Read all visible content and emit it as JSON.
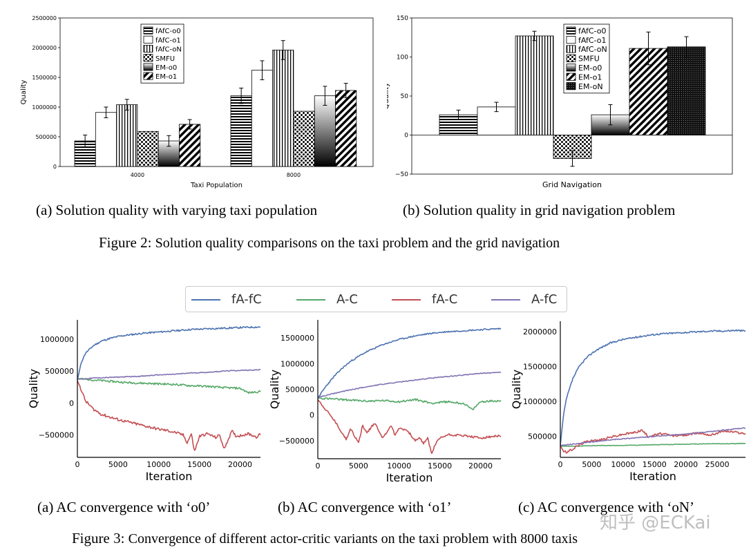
{
  "figure2": {
    "caption_prefix": "Figure 2:",
    "caption_text": "Solution quality comparisons on the taxi problem and the grid navigation",
    "subcaption_a": "(a) Solution quality with varying taxi population",
    "subcaption_b": "(b) Solution quality in grid navigation problem"
  },
  "figure3": {
    "caption_prefix": "Figure 3:",
    "caption_text": "Convergence of different actor-critic variants on the taxi problem with 8000 taxis",
    "subcaption_a": "(a) AC convergence with ‘o0’",
    "subcaption_b": "(b) AC convergence with ‘o1’",
    "subcaption_c": "(c) AC convergence with ‘oN’",
    "legend": [
      "fA-fC",
      "A-C",
      "fA-C",
      "A-fC"
    ]
  },
  "watermark": "知乎 @ECKai",
  "chart_data": [
    {
      "type": "bar",
      "id": "taxi",
      "title": "",
      "xlabel": "Taxi Population",
      "ylabel": "Quality",
      "categories": [
        "4000",
        "8000"
      ],
      "ylim": [
        0,
        2500000
      ],
      "yticks": [
        0,
        500000,
        1000000,
        1500000,
        2000000,
        2500000
      ],
      "ytick_labels": [
        "0",
        "500000",
        "1000000",
        "1500000",
        "2000000",
        "2500000"
      ],
      "series": [
        {
          "name": "fAfC-o0",
          "pattern": "hstripe",
          "values": [
            430000,
            1190000
          ],
          "errors": [
            100000,
            130000
          ]
        },
        {
          "name": "fAfC-o1",
          "pattern": "white",
          "values": [
            910000,
            1620000
          ],
          "errors": [
            90000,
            160000
          ]
        },
        {
          "name": "fAfC-oN",
          "pattern": "vstripe",
          "values": [
            1040000,
            1960000
          ],
          "errors": [
            90000,
            160000
          ]
        },
        {
          "name": "SMFU",
          "pattern": "dots",
          "values": [
            590000,
            930000
          ],
          "errors": [
            0,
            0
          ]
        },
        {
          "name": "EM-o0",
          "pattern": "gradient",
          "values": [
            430000,
            1190000
          ],
          "errors": [
            90000,
            160000
          ]
        },
        {
          "name": "EM-o1",
          "pattern": "diag",
          "values": [
            710000,
            1280000
          ],
          "errors": [
            80000,
            120000
          ]
        }
      ]
    },
    {
      "type": "bar",
      "id": "grid",
      "title": "",
      "xlabel": "Grid Navigation",
      "ylabel": "Quality",
      "categories": [
        ""
      ],
      "ylim": [
        -50,
        150
      ],
      "yticks": [
        -50,
        0,
        50,
        100,
        150
      ],
      "ytick_labels": [
        "−50",
        "0",
        "50",
        "100",
        "150"
      ],
      "series": [
        {
          "name": "fAfC-o0",
          "pattern": "hstripe",
          "values": [
            26
          ],
          "errors": [
            6
          ]
        },
        {
          "name": "fAfC-o1",
          "pattern": "white",
          "values": [
            36
          ],
          "errors": [
            6
          ]
        },
        {
          "name": "fAfC-oN",
          "pattern": "vstripe",
          "values": [
            127
          ],
          "errors": [
            6
          ]
        },
        {
          "name": "SMFU",
          "pattern": "dots",
          "values": [
            -30
          ],
          "errors": [
            10
          ]
        },
        {
          "name": "EM-o0",
          "pattern": "gradient",
          "values": [
            26
          ],
          "errors": [
            13
          ]
        },
        {
          "name": "EM-o1",
          "pattern": "diag",
          "values": [
            111
          ],
          "errors": [
            21
          ]
        },
        {
          "name": "EM-oN",
          "pattern": "cross",
          "values": [
            113
          ],
          "errors": [
            13
          ]
        }
      ]
    },
    {
      "type": "line",
      "id": "o0",
      "xlabel": "Iteration",
      "ylabel": "Quality",
      "xlim": [
        0,
        22500
      ],
      "ylim": [
        -850000,
        1300000
      ],
      "xticks": [
        0,
        5000,
        10000,
        15000,
        20000
      ],
      "xtick_labels": [
        "0",
        "5000",
        "10000",
        "15000",
        "20000"
      ],
      "yticks": [
        -500000,
        0,
        500000,
        1000000
      ],
      "ytick_labels": [
        "−500000",
        "0",
        "500000",
        "1000000"
      ],
      "series": [
        {
          "name": "fA-fC",
          "color": "#4c72b0",
          "x": [
            0,
            500,
            1000,
            2000,
            3000,
            4000,
            5000,
            6000,
            8000,
            10000,
            12000,
            14000,
            16000,
            18000,
            20000,
            22500
          ],
          "y": [
            360000,
            640000,
            780000,
            900000,
            970000,
            1010000,
            1040000,
            1060000,
            1090000,
            1110000,
            1130000,
            1150000,
            1160000,
            1170000,
            1180000,
            1190000
          ]
        },
        {
          "name": "A-C",
          "color": "#55a868",
          "x": [
            0,
            2000,
            4000,
            6000,
            8000,
            10000,
            12000,
            14000,
            16000,
            18000,
            20000,
            21000,
            22500
          ],
          "y": [
            380000,
            360000,
            340000,
            320000,
            310000,
            300000,
            290000,
            270000,
            260000,
            240000,
            230000,
            160000,
            180000
          ]
        },
        {
          "name": "fA-C",
          "color": "#c44e52",
          "x": [
            0,
            500,
            1000,
            2000,
            3000,
            4000,
            5000,
            6000,
            7000,
            8000,
            9000,
            10000,
            11000,
            12000,
            13000,
            13500,
            14000,
            14400,
            15000,
            16000,
            17000,
            17500,
            18000,
            19000,
            19500,
            20000,
            21000,
            22000,
            22500
          ],
          "y": [
            350000,
            200000,
            30000,
            -100000,
            -180000,
            -220000,
            -260000,
            -290000,
            -320000,
            -350000,
            -380000,
            -410000,
            -430000,
            -460000,
            -500000,
            -620000,
            -480000,
            -760000,
            -520000,
            -480000,
            -540000,
            -500000,
            -720000,
            -440000,
            -520000,
            -510000,
            -480000,
            -530000,
            -490000
          ]
        },
        {
          "name": "A-fC",
          "color": "#8172b2",
          "x": [
            0,
            2000,
            4000,
            6000,
            8000,
            10000,
            12000,
            14000,
            16000,
            18000,
            20000,
            22500
          ],
          "y": [
            370000,
            390000,
            400000,
            410000,
            420000,
            440000,
            450000,
            470000,
            480000,
            500000,
            510000,
            520000
          ]
        }
      ]
    },
    {
      "type": "line",
      "id": "o1",
      "xlabel": "Iteration",
      "ylabel": "Quality",
      "xlim": [
        0,
        22500
      ],
      "ylim": [
        -850000,
        1850000
      ],
      "xticks": [
        0,
        5000,
        10000,
        15000,
        20000
      ],
      "xtick_labels": [
        "0",
        "5000",
        "10000",
        "15000",
        "20000"
      ],
      "yticks": [
        -500000,
        0,
        500000,
        1000000,
        1500000
      ],
      "ytick_labels": [
        "−500000",
        "0",
        "500000",
        "1000000",
        "1500000"
      ],
      "series": [
        {
          "name": "fA-fC",
          "color": "#4c72b0",
          "x": [
            0,
            1000,
            2000,
            3000,
            4000,
            5000,
            6000,
            8000,
            10000,
            12000,
            14000,
            16000,
            18000,
            20000,
            22500
          ],
          "y": [
            330000,
            560000,
            750000,
            910000,
            1040000,
            1140000,
            1230000,
            1370000,
            1470000,
            1540000,
            1590000,
            1620000,
            1640000,
            1660000,
            1680000
          ]
        },
        {
          "name": "A-C",
          "color": "#55a868",
          "x": [
            0,
            2000,
            4000,
            6000,
            8000,
            10000,
            12000,
            14000,
            16000,
            18000,
            19000,
            20000,
            22500
          ],
          "y": [
            330000,
            310000,
            290000,
            270000,
            280000,
            260000,
            300000,
            230000,
            260000,
            220000,
            100000,
            260000,
            280000
          ]
        },
        {
          "name": "fA-C",
          "color": "#c44e52",
          "x": [
            0,
            1000,
            2000,
            3000,
            3500,
            4000,
            5000,
            5500,
            6000,
            7000,
            8000,
            9000,
            9500,
            10000,
            11000,
            12000,
            12500,
            13000,
            13500,
            14000,
            14500,
            15000,
            16000,
            18000,
            20000,
            22500
          ],
          "y": [
            300000,
            100000,
            -100000,
            -350000,
            -480000,
            -250000,
            -550000,
            -200000,
            -350000,
            -150000,
            -450000,
            -200000,
            -400000,
            -250000,
            -300000,
            -500000,
            -450000,
            -550000,
            -450000,
            -750000,
            -550000,
            -450000,
            -380000,
            -400000,
            -450000,
            -400000
          ]
        },
        {
          "name": "A-fC",
          "color": "#8172b2",
          "x": [
            0,
            2000,
            4000,
            6000,
            8000,
            10000,
            12000,
            14000,
            16000,
            18000,
            20000,
            22500
          ],
          "y": [
            340000,
            420000,
            490000,
            550000,
            600000,
            640000,
            680000,
            720000,
            750000,
            780000,
            810000,
            830000
          ]
        }
      ]
    },
    {
      "type": "line",
      "id": "oN",
      "xlabel": "Iteration",
      "ylabel": "Quality",
      "xlim": [
        0,
        29500
      ],
      "ylim": [
        200000,
        2150000
      ],
      "xticks": [
        0,
        5000,
        10000,
        15000,
        20000,
        25000
      ],
      "xtick_labels": [
        "0",
        "5000",
        "10000",
        "15000",
        "20000",
        "25000"
      ],
      "yticks": [
        500000,
        1000000,
        1500000,
        2000000
      ],
      "ytick_labels": [
        "500000",
        "1000000",
        "1500000",
        "2000000"
      ],
      "series": [
        {
          "name": "fA-fC",
          "color": "#4c72b0",
          "x": [
            0,
            500,
            1000,
            2000,
            3000,
            4000,
            5000,
            6000,
            8000,
            10000,
            12000,
            14000,
            16000,
            18000,
            20000,
            22000,
            24000,
            26000,
            28000,
            29500
          ],
          "y": [
            370000,
            800000,
            1050000,
            1330000,
            1500000,
            1610000,
            1690000,
            1750000,
            1840000,
            1890000,
            1920000,
            1950000,
            1970000,
            1980000,
            1990000,
            2000000,
            2010000,
            2010000,
            2020000,
            2010000
          ]
        },
        {
          "name": "A-C",
          "color": "#55a868",
          "x": [
            0,
            3000,
            6000,
            9000,
            12000,
            15000,
            18000,
            21000,
            24000,
            27000,
            29500
          ],
          "y": [
            360000,
            360000,
            370000,
            370000,
            375000,
            380000,
            385000,
            390000,
            395000,
            395000,
            400000
          ]
        },
        {
          "name": "fA-C",
          "color": "#c44e52",
          "x": [
            0,
            500,
            1000,
            2000,
            3000,
            4000,
            5000,
            6000,
            8000,
            10000,
            12000,
            13000,
            14000,
            16000,
            18000,
            20000,
            22000,
            24000,
            26000,
            28000,
            29500
          ],
          "y": [
            370000,
            290000,
            270000,
            320000,
            380000,
            420000,
            450000,
            440000,
            490000,
            530000,
            560000,
            590000,
            500000,
            540000,
            510000,
            520000,
            550000,
            520000,
            580000,
            560000,
            540000
          ]
        },
        {
          "name": "A-fC",
          "color": "#8172b2",
          "x": [
            0,
            3000,
            6000,
            9000,
            12000,
            15000,
            18000,
            21000,
            24000,
            27000,
            29500
          ],
          "y": [
            370000,
            400000,
            430000,
            460000,
            480000,
            500000,
            520000,
            540000,
            570000,
            600000,
            620000
          ]
        }
      ]
    }
  ]
}
